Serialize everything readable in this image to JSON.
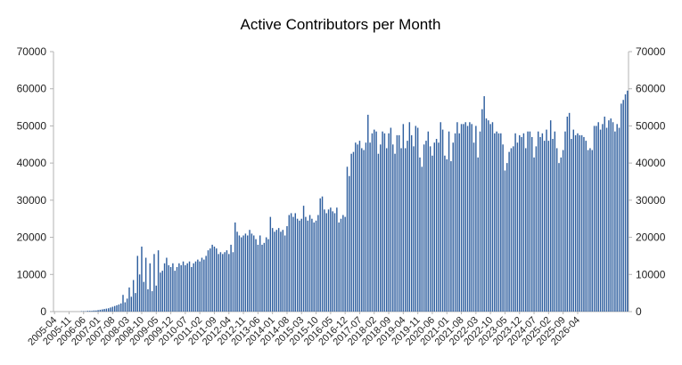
{
  "chart_data": {
    "type": "bar",
    "title": "Active Contributors per Month",
    "xlabel": "",
    "ylabel": "",
    "ylim": [
      0,
      70000
    ],
    "yticks": [
      0,
      10000,
      20000,
      30000,
      40000,
      50000,
      60000,
      70000
    ],
    "secondary_y_axis": true,
    "grid": false,
    "legend": "none",
    "bar_color": "#2f5f9f",
    "x_start": "2005-04",
    "x_end": "2026-06",
    "x_tick_labels": [
      "2005-04",
      "2005-11",
      "2006-06",
      "2007-01",
      "2007-08",
      "2008-03",
      "2008-10",
      "2009-05",
      "2009-12",
      "2010-07",
      "2011-02",
      "2011-09",
      "2012-04",
      "2012-11",
      "2013-06",
      "2014-01",
      "2014-08",
      "2015-03",
      "2015-10",
      "2016-05",
      "2016-12",
      "2017-07",
      "2018-02",
      "2018-09",
      "2019-04",
      "2019-11",
      "2020-06",
      "2021-01",
      "2021-08",
      "2022-03",
      "2022-10",
      "2023-05",
      "2023-12",
      "2024-07",
      "2025-02",
      "2025-09",
      "2026-04"
    ],
    "values": [
      0,
      0,
      0,
      0,
      0,
      0,
      0,
      0,
      0,
      0,
      0,
      0,
      0,
      100,
      100,
      100,
      200,
      200,
      200,
      300,
      300,
      400,
      500,
      600,
      700,
      800,
      900,
      1100,
      1300,
      1500,
      1700,
      1900,
      2200,
      4500,
      2500,
      3500,
      6500,
      4000,
      8500,
      5000,
      15000,
      10000,
      17500,
      8000,
      14500,
      6000,
      13000,
      5500,
      15500,
      7000,
      16500,
      10500,
      11000,
      13000,
      14500,
      12500,
      12000,
      13000,
      11000,
      12000,
      13000,
      12500,
      13500,
      12500,
      13000,
      13500,
      12000,
      13000,
      13500,
      14000,
      13500,
      14500,
      14000,
      15000,
      16500,
      17000,
      18000,
      17500,
      17000,
      15500,
      16000,
      15500,
      16000,
      16500,
      15500,
      18000,
      16000,
      24000,
      21500,
      20500,
      20000,
      20500,
      21000,
      20500,
      22000,
      21000,
      20500,
      19500,
      18000,
      20500,
      18000,
      18500,
      20000,
      19500,
      25500,
      22500,
      21500,
      22000,
      22500,
      21500,
      22000,
      20500,
      23000,
      26000,
      26500,
      25500,
      26500,
      25000,
      24500,
      25000,
      28500,
      25500,
      24500,
      26000,
      25000,
      24000,
      24500,
      26000,
      30500,
      31000,
      27500,
      26500,
      27500,
      28000,
      27000,
      26500,
      28000,
      24000,
      25000,
      26000,
      25500,
      39000,
      36500,
      42500,
      43000,
      45500,
      45000,
      46000,
      44000,
      43500,
      45500,
      53000,
      45500,
      48000,
      49000,
      48500,
      42500,
      45000,
      48500,
      48000,
      44000,
      48000,
      49500,
      45000,
      42500,
      47500,
      47500,
      44000,
      50500,
      44000,
      46000,
      51000,
      47500,
      44500,
      50000,
      49500,
      41500,
      39000,
      45000,
      46000,
      48500,
      44500,
      42000,
      45500,
      46500,
      45500,
      51000,
      49000,
      42000,
      41000,
      48500,
      40500,
      45500,
      48000,
      51000,
      48000,
      50500,
      50500,
      51000,
      50000,
      51000,
      50500,
      45500,
      50000,
      41500,
      48500,
      54500,
      58000,
      52000,
      51500,
      50500,
      51000,
      48000,
      48500,
      48000,
      48000,
      45000,
      38000,
      40000,
      43000,
      44000,
      44500,
      48000,
      45500,
      47500,
      47000,
      48000,
      44000,
      48500,
      48500,
      47000,
      41500,
      44500,
      48500,
      47000,
      48000,
      46000,
      49000,
      46000,
      51500,
      46500,
      48500,
      44000,
      40000,
      41500,
      43500,
      48500,
      52500,
      53500,
      46500,
      49000,
      47500,
      48000,
      47500,
      47500,
      47000,
      46000,
      43500,
      44000,
      43500,
      50000,
      50000,
      51000,
      49000,
      50500,
      52500,
      49500,
      51500,
      52000,
      51000,
      48500,
      50500,
      49500,
      56000,
      57000,
      58500,
      59500
    ],
    "tick_format": "integer"
  }
}
